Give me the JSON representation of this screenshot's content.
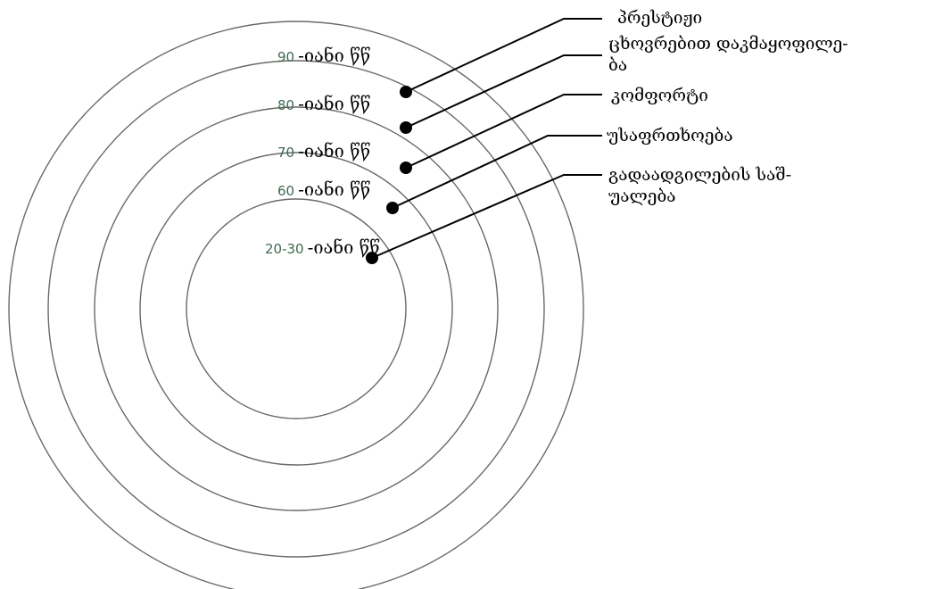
{
  "rings": [
    {
      "decade": "90",
      "suffix": "-იანი წწ"
    },
    {
      "decade": "80",
      "suffix": "-იანი წწ"
    },
    {
      "decade": "70",
      "suffix": "-იანი წწ"
    },
    {
      "decade": "60",
      "suffix": "-იანი წწ"
    },
    {
      "decade": "20-30",
      "suffix": "-იანი წწ"
    }
  ],
  "needs": [
    {
      "lines": [
        "პრესტიჟი"
      ]
    },
    {
      "lines": [
        "ცხოვრებით დაკმაყოფილე-",
        "ბა"
      ]
    },
    {
      "lines": [
        "კომფორტი"
      ]
    },
    {
      "lines": [
        "უსაფრთხოება"
      ]
    },
    {
      "lines": [
        "გადაადგილების საშ-",
        "უალება"
      ]
    }
  ],
  "colors": {
    "ring_stroke": "#6a6a6a",
    "decade_number": "#3e6b4f",
    "text": "#000000"
  }
}
